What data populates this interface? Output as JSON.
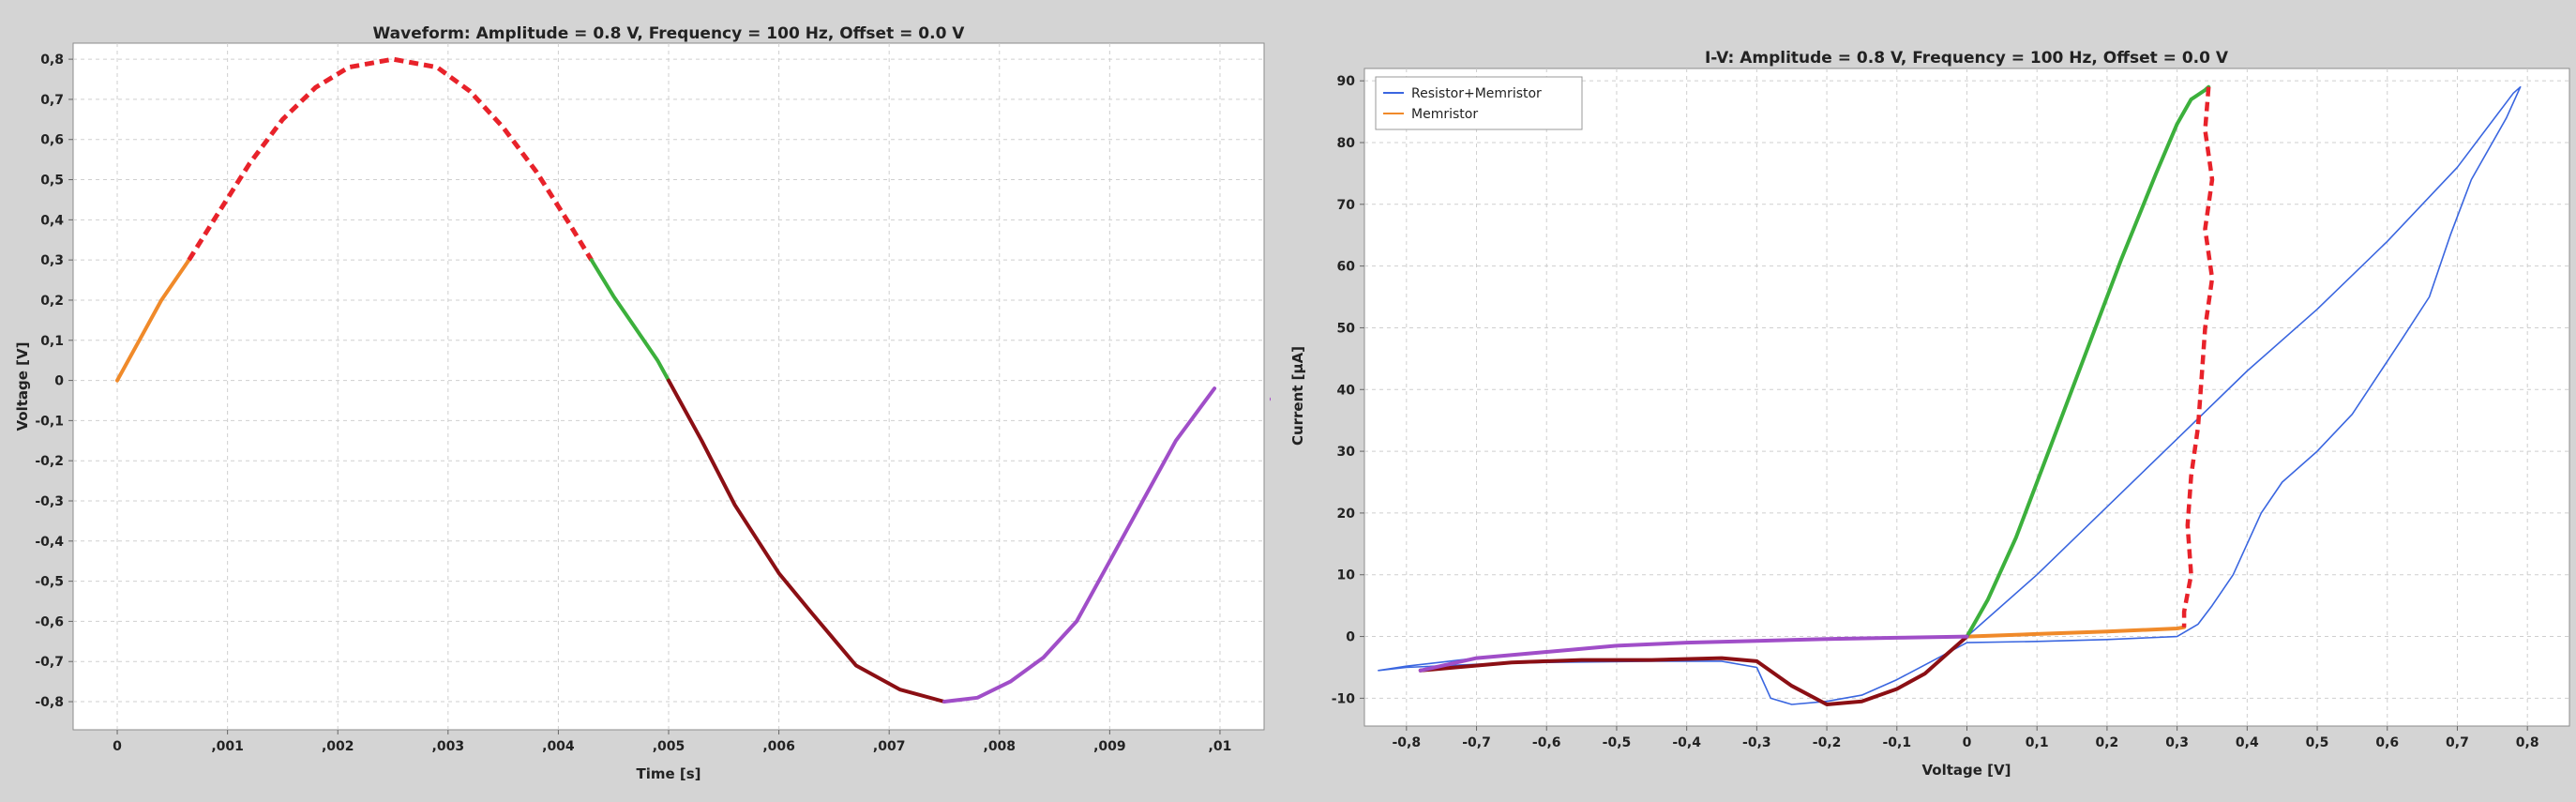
{
  "chart_data": [
    {
      "type": "line",
      "title": "Waveform: Amplitude = 0.8 V, Frequency = 100 Hz, Offset = 0.0 V",
      "xlabel": "Time [s]",
      "ylabel": "Voltage [V]",
      "xlim": [
        -0.0004,
        0.0104
      ],
      "ylim": [
        -0.87,
        0.84
      ],
      "grid": true,
      "x_ticks": [
        0,
        0.001,
        0.002,
        0.003,
        0.004,
        0.005,
        0.006,
        0.007,
        0.008,
        0.009,
        0.01
      ],
      "x_tick_labels": [
        "0",
        ",001",
        ",002",
        ",003",
        ",004",
        ",005",
        ",006",
        ",007",
        ",008",
        ",009",
        ",01"
      ],
      "y_ticks": [
        -0.8,
        -0.7,
        -0.6,
        -0.5,
        -0.4,
        -0.3,
        -0.2,
        -0.1,
        0,
        0.1,
        0.2,
        0.3,
        0.4,
        0.5,
        0.6,
        0.7,
        0.8
      ],
      "y_tick_labels": [
        "-0,8",
        "-0,7",
        "-0,6",
        "-0,5",
        "-0,4",
        "-0,3",
        "-0,2",
        "-0,1",
        "0",
        "0,1",
        "0,2",
        "0,3",
        "0,4",
        "0,5",
        "0,6",
        "0,7",
        "0,8"
      ],
      "series": [
        {
          "color": "#f08a2a",
          "width": 4,
          "dashed": false,
          "x": [
            0,
            0.0002,
            0.0004,
            0.00065
          ],
          "y": [
            0,
            0.1,
            0.2,
            0.3
          ]
        },
        {
          "color": "#e8222a",
          "width": 5,
          "dashed": true,
          "x": [
            0.00065,
            0.0009,
            0.0012,
            0.0015,
            0.0018,
            0.0021,
            0.0025,
            0.0029,
            0.0032,
            0.0035,
            0.0038,
            0.0041,
            0.0043
          ],
          "y": [
            0.3,
            0.41,
            0.54,
            0.65,
            0.73,
            0.78,
            0.8,
            0.78,
            0.72,
            0.63,
            0.52,
            0.39,
            0.3
          ]
        },
        {
          "color": "#3cb03c",
          "width": 4,
          "dashed": false,
          "x": [
            0.0043,
            0.0045,
            0.0047,
            0.0049,
            0.005
          ],
          "y": [
            0.3,
            0.21,
            0.13,
            0.05,
            0
          ]
        },
        {
          "color": "#8b0f14",
          "width": 4,
          "dashed": false,
          "x": [
            0.005,
            0.0053,
            0.0056,
            0.006,
            0.0063,
            0.0067,
            0.0071,
            0.0075
          ],
          "y": [
            0,
            -0.15,
            -0.31,
            -0.48,
            -0.58,
            -0.71,
            -0.77,
            -0.8
          ]
        },
        {
          "color": "#a04ec8",
          "width": 4,
          "dashed": false,
          "x": [
            0.0075,
            0.0078,
            0.0081,
            0.0084,
            0.0087,
            0.009,
            0.0093,
            0.0096,
            0.00995
          ],
          "y": [
            -0.8,
            -0.79,
            -0.75,
            -0.69,
            -0.6,
            -0.45,
            -0.3,
            -0.15,
            -0.02
          ]
        }
      ]
    },
    {
      "type": "line",
      "title": "I-V: Amplitude = 0.8 V, Frequency = 100 Hz, Offset = 0.0 V",
      "xlabel": "Voltage [V]",
      "ylabel": "Current [µA]",
      "xlim": [
        -0.86,
        0.86
      ],
      "ylim": [
        -14.5,
        92
      ],
      "grid": true,
      "legend_position": "top-left",
      "legend": [
        {
          "label": "Resistor+Memristor",
          "color": "#3a66e0"
        },
        {
          "label": "Memristor",
          "color": "#f08a2a"
        }
      ],
      "x_ticks": [
        -0.8,
        -0.7,
        -0.6,
        -0.5,
        -0.4,
        -0.3,
        -0.2,
        -0.1,
        0,
        0.1,
        0.2,
        0.3,
        0.4,
        0.5,
        0.6,
        0.7,
        0.8
      ],
      "x_tick_labels": [
        "-0,8",
        "-0,7",
        "-0,6",
        "-0,5",
        "-0,4",
        "-0,3",
        "-0,2",
        "-0,1",
        "0",
        "0,1",
        "0,2",
        "0,3",
        "0,4",
        "0,5",
        "0,6",
        "0,7",
        "0,8"
      ],
      "y_ticks": [
        -10,
        0,
        10,
        20,
        30,
        40,
        50,
        60,
        70,
        80,
        90
      ],
      "y_tick_labels": [
        "-10",
        "0",
        "10",
        "20",
        "30",
        "40",
        "50",
        "60",
        "70",
        "80",
        "90"
      ],
      "series": [
        {
          "name": "Resistor+Memristor",
          "color": "#3a66e0",
          "width": 1.6,
          "dashed": false,
          "x": [
            0,
            0.1,
            0.2,
            0.3,
            0.4,
            0.5,
            0.6,
            0.7,
            0.78,
            0.79,
            0.77,
            0.72,
            0.69,
            0.66,
            0.62,
            0.55,
            0.5,
            0.45,
            0.42,
            0.38,
            0.35,
            0.33,
            0.3,
            0.2,
            0.1,
            0,
            -0.05,
            -0.1,
            -0.15,
            -0.2,
            -0.25,
            -0.28,
            -0.3,
            -0.35,
            -0.45,
            -0.6,
            -0.7,
            -0.8,
            -0.84,
            -0.8,
            -0.7,
            -0.6,
            -0.5,
            -0.4,
            -0.3,
            -0.2,
            -0.1,
            0
          ],
          "y": [
            0,
            10,
            21,
            32,
            43,
            53,
            64,
            76,
            88,
            89,
            84,
            74,
            65,
            55,
            48,
            36,
            30,
            25,
            20,
            10,
            5,
            2,
            0,
            -0.5,
            -0.8,
            -1,
            -4,
            -7,
            -9.5,
            -10.5,
            -11,
            -10,
            -5,
            -4,
            -4,
            -4.2,
            -4.5,
            -5,
            -5.5,
            -4.8,
            -3.5,
            -2.5,
            -1.5,
            -1,
            -0.6,
            -0.3,
            -0.1,
            0
          ]
        },
        {
          "name": "Memristor",
          "color": "#f08a2a",
          "width": 4,
          "dashed": false,
          "x": [
            0,
            0.1,
            0.2,
            0.3,
            0.31
          ],
          "y": [
            0,
            0.4,
            0.8,
            1.3,
            1.5
          ]
        },
        {
          "color": "#3cb03c",
          "width": 4,
          "dashed": false,
          "x": [
            0,
            0.03,
            0.07,
            0.12,
            0.17,
            0.22,
            0.27,
            0.3,
            0.32,
            0.34,
            0.345
          ],
          "y": [
            0,
            6,
            16,
            31,
            46,
            61,
            75,
            83,
            87,
            88.5,
            89
          ]
        },
        {
          "color": "#e8222a",
          "width": 4.5,
          "dashed": true,
          "x": [
            0.345,
            0.34,
            0.35,
            0.34,
            0.35,
            0.34,
            0.335,
            0.33,
            0.32,
            0.315,
            0.32,
            0.31,
            0.31
          ],
          "y": [
            89,
            82,
            74,
            66,
            58,
            50,
            42,
            34,
            26,
            18,
            10,
            4,
            1.5
          ]
        },
        {
          "color": "#8b0f14",
          "width": 4,
          "dashed": false,
          "x": [
            0,
            -0.03,
            -0.06,
            -0.1,
            -0.15,
            -0.2,
            -0.25,
            -0.3,
            -0.35,
            -0.45,
            -0.55,
            -0.65,
            -0.78
          ],
          "y": [
            0,
            -3,
            -6,
            -8.5,
            -10.5,
            -11,
            -8,
            -4,
            -3.5,
            -3.8,
            -3.8,
            -4.2,
            -5.5
          ]
        },
        {
          "color": "#a04ec8",
          "width": 4,
          "dashed": false,
          "x": [
            -0.78,
            -0.7,
            -0.6,
            -0.5,
            -0.4,
            -0.3,
            -0.2,
            -0.1,
            0
          ],
          "y": [
            -5.5,
            -3.5,
            -2.5,
            -1.5,
            -1,
            -0.7,
            -0.4,
            -0.2,
            0
          ]
        }
      ]
    }
  ]
}
